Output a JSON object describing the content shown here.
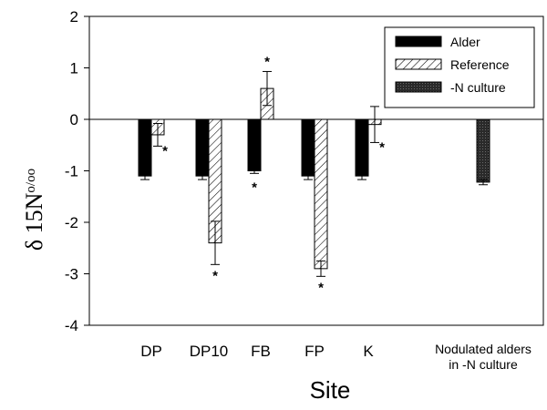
{
  "chart_data": {
    "type": "bar",
    "xlabel": "Site",
    "ylabel": {
      "main": "δ 15N",
      "unit": "o/oo"
    },
    "ylim": [
      -4,
      2
    ],
    "yticks": [
      -4,
      -3,
      -2,
      -1,
      0,
      1,
      2
    ],
    "grid": false,
    "legend_position": "top-right",
    "categories": [
      {
        "label": "DP"
      },
      {
        "label": "DP10"
      },
      {
        "label": "FB"
      },
      {
        "label": "FP"
      },
      {
        "label": "K"
      },
      {
        "label": [
          "Nodulated alders",
          "in -N culture"
        ]
      }
    ],
    "series": [
      {
        "name": "Alder",
        "style": "solid",
        "color": "#000000",
        "values": [
          -1.1,
          -1.1,
          -1.0,
          -1.1,
          -1.1,
          null
        ],
        "errors": [
          0.07,
          0.07,
          0.05,
          0.07,
          0.07,
          null
        ],
        "significant": [
          false,
          false,
          true,
          false,
          false,
          false
        ]
      },
      {
        "name": "Reference",
        "style": "hatched",
        "color": "#000000",
        "values": [
          -0.3,
          -2.4,
          0.6,
          -2.9,
          -0.1,
          null
        ],
        "errors": [
          0.22,
          0.42,
          0.33,
          0.15,
          0.35,
          null
        ],
        "significant": [
          true,
          true,
          true,
          true,
          true,
          false
        ]
      },
      {
        "name": "-N culture",
        "style": "stippled",
        "color": "#333333",
        "values": [
          null,
          null,
          null,
          null,
          null,
          -1.22
        ],
        "errors": [
          null,
          null,
          null,
          null,
          null,
          0.05
        ],
        "significant": [
          false,
          false,
          false,
          false,
          false,
          false
        ]
      }
    ]
  }
}
